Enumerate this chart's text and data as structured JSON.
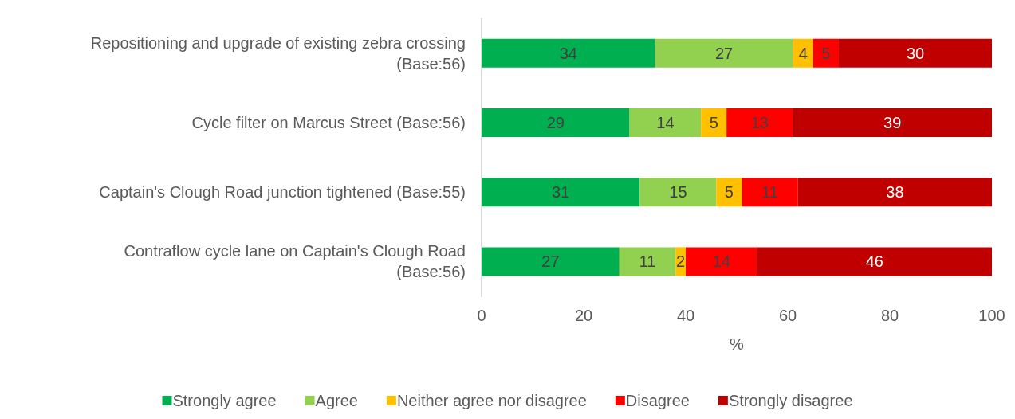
{
  "chart_data": {
    "type": "bar",
    "orientation": "horizontal",
    "stacked": true,
    "data_labels": true,
    "grid": false,
    "legend": "bottom",
    "xlabel": "%",
    "xlim": [
      0,
      100
    ],
    "xticks": [
      0,
      20,
      40,
      60,
      80,
      100
    ],
    "categories": [
      "Repositioning and upgrade of existing zebra crossing\n(Base:56)",
      "Cycle filter on Marcus Street (Base:56)",
      "Captain's Clough Road junction tightened (Base:55)",
      "Contraflow cycle lane on Captain's Clough Road\n(Base:56)"
    ],
    "series": [
      {
        "name": "Strongly agree",
        "color": "#00b050",
        "values": [
          34,
          29,
          31,
          27
        ]
      },
      {
        "name": "Agree",
        "color": "#92d050",
        "values": [
          27,
          14,
          15,
          11
        ]
      },
      {
        "name": "Neither agree nor disagree",
        "color": "#ffc000",
        "values": [
          4,
          5,
          5,
          2
        ]
      },
      {
        "name": "Disagree",
        "color": "#ff0000",
        "values": [
          5,
          13,
          11,
          14
        ]
      },
      {
        "name": "Strongly disagree",
        "color": "#c00000",
        "values": [
          30,
          39,
          38,
          46
        ]
      }
    ]
  }
}
